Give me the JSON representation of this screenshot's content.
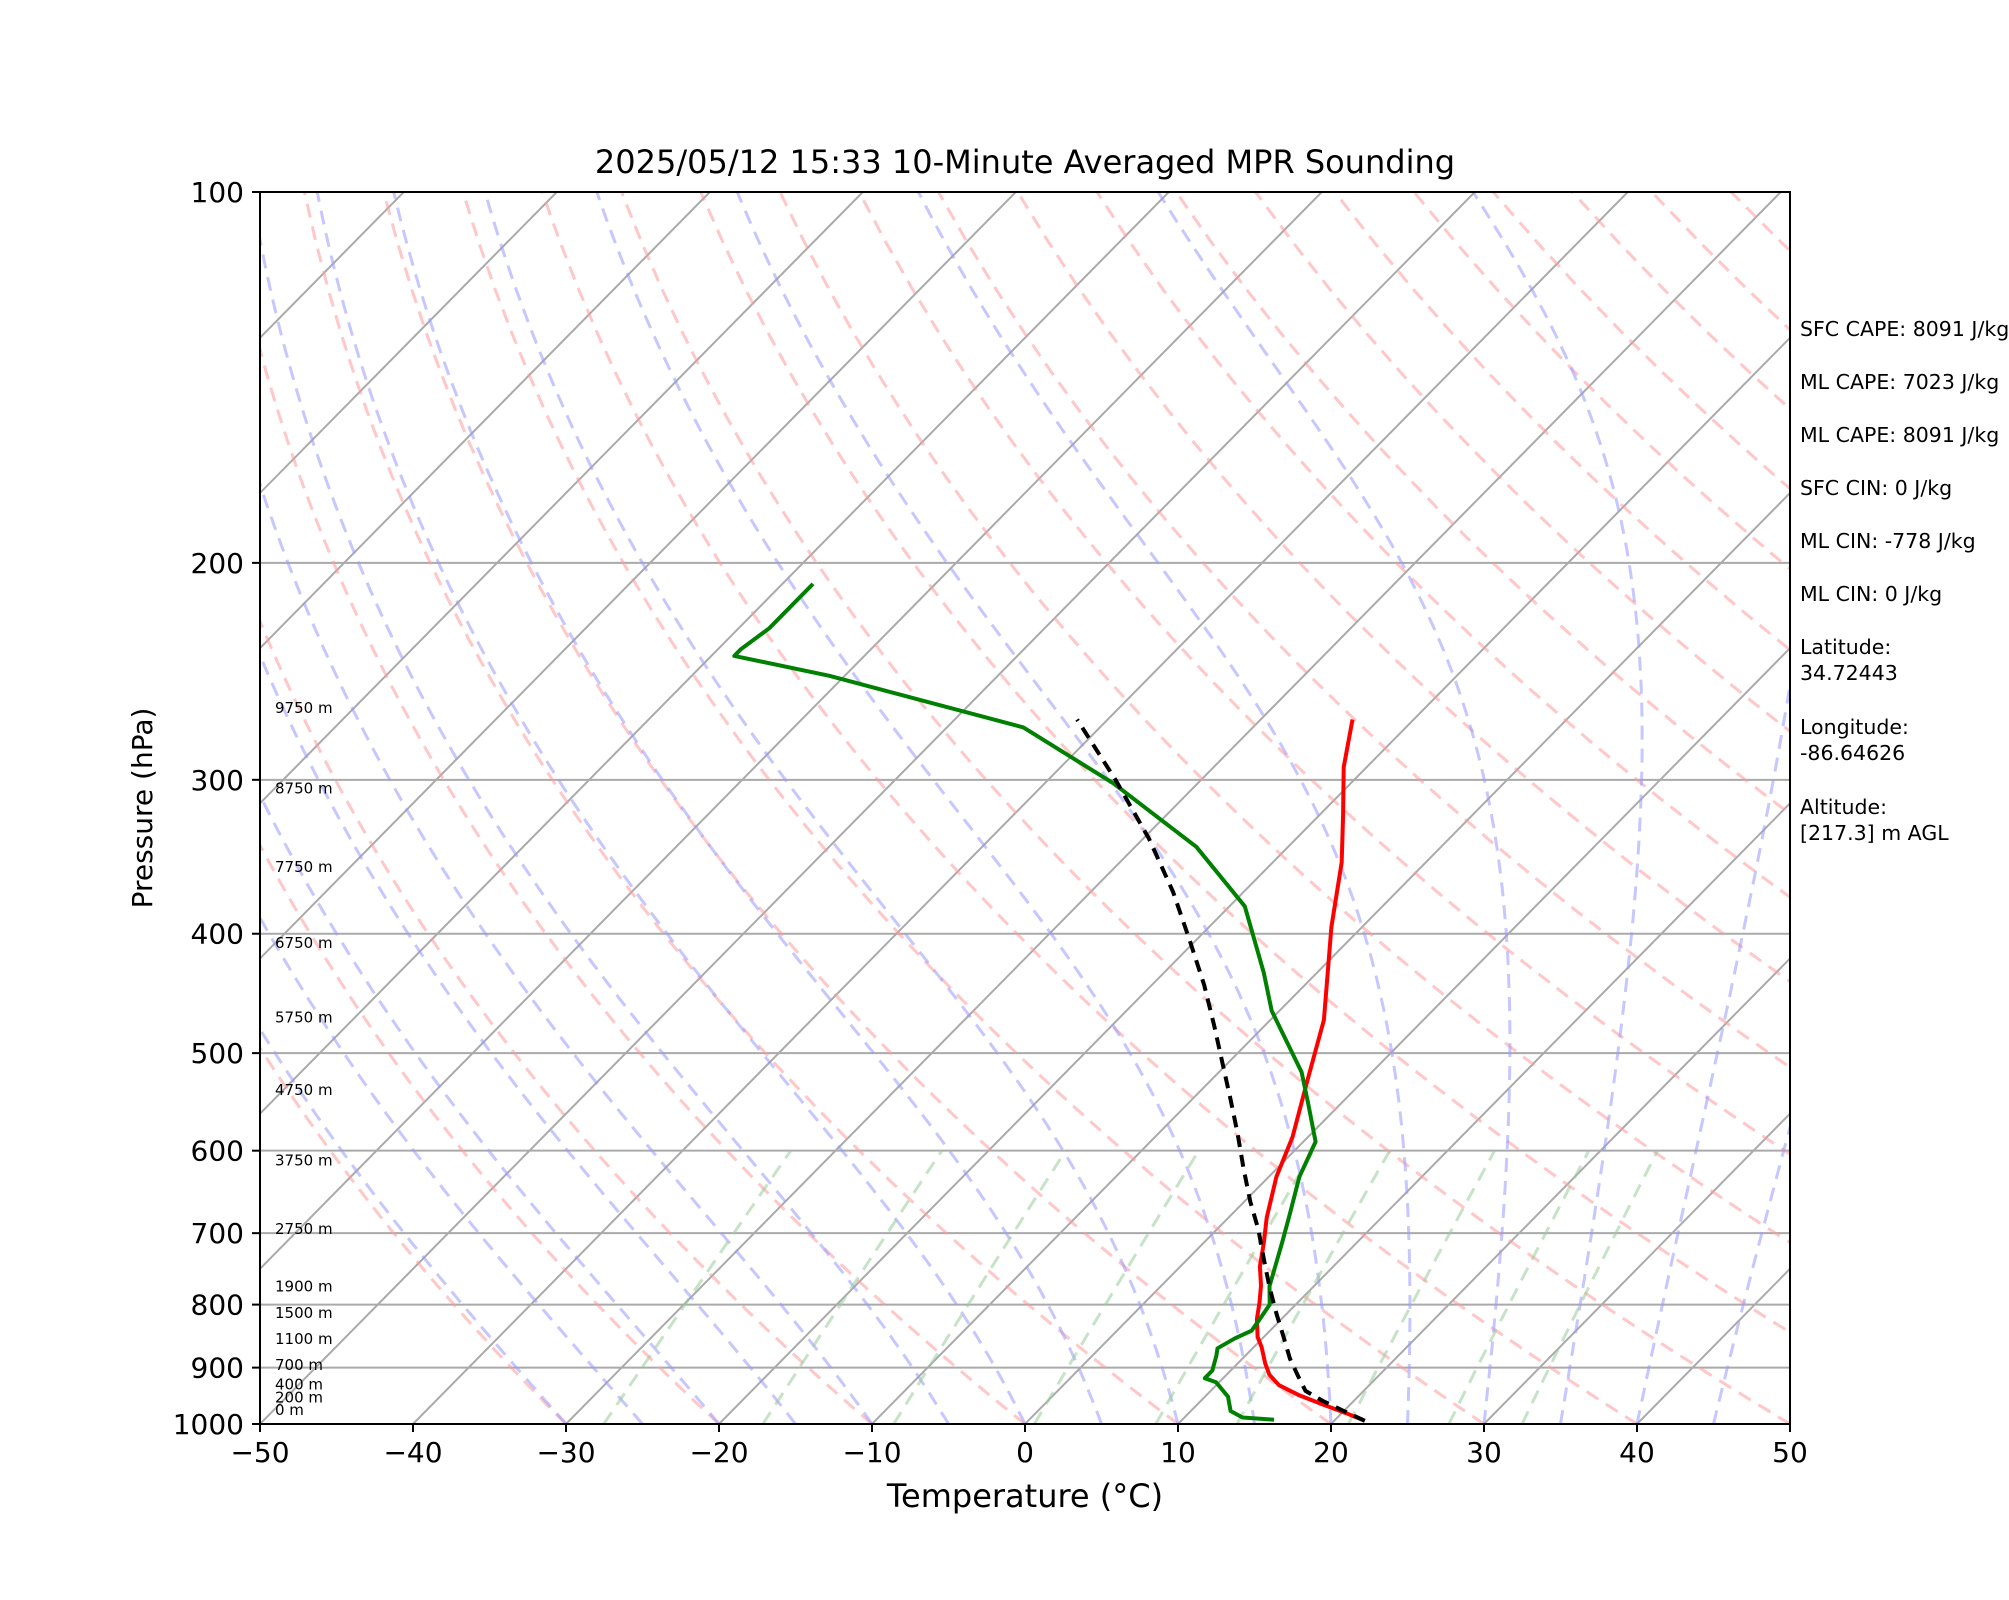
{
  "chart_data": {
    "type": "line",
    "subtype": "skew-t log-p sounding",
    "title": "2025/05/12 15:33 10-Minute Averaged MPR Sounding",
    "xlabel": "Temperature (°C)",
    "ylabel": "Pressure (hPa)",
    "xlim": [
      -50,
      50
    ],
    "ylim": [
      1000,
      100
    ],
    "y_scale": "log",
    "x_ticks": [
      "−50",
      "−40",
      "−30",
      "−20",
      "−10",
      "0",
      "10",
      "20",
      "30",
      "40",
      "50"
    ],
    "y_ticks": [
      "100",
      "200",
      "300",
      "400",
      "500",
      "600",
      "700",
      "800",
      "900",
      "1000"
    ],
    "height_labels": [
      "0 m",
      "200 m",
      "400 m",
      "700 m",
      "1100 m",
      "1500 m",
      "1900 m",
      "2750 m",
      "3750 m",
      "4750 m",
      "5750 m",
      "6750 m",
      "7750 m",
      "8750 m",
      "9750 m"
    ],
    "series": [
      {
        "role": "temperature",
        "color": "#ff0000",
        "points": [
          [
            22.0,
            994
          ],
          [
            20.3,
            980
          ],
          [
            18.3,
            965
          ],
          [
            16.1,
            948
          ],
          [
            14.1,
            930
          ],
          [
            12.8,
            912
          ],
          [
            11.8,
            893
          ],
          [
            10.5,
            866
          ],
          [
            9.6,
            850
          ],
          [
            8.4,
            822
          ],
          [
            7.5,
            797
          ],
          [
            6.5,
            772
          ],
          [
            5.2,
            745
          ],
          [
            3.9,
            712
          ],
          [
            2.5,
            680
          ],
          [
            0.5,
            630
          ],
          [
            -1.0,
            585
          ],
          [
            -3.5,
            530
          ],
          [
            -6.5,
            470
          ],
          [
            -12.0,
            395
          ],
          [
            -15.5,
            350
          ],
          [
            -18.5,
            320
          ],
          [
            -21.5,
            293
          ],
          [
            -24.0,
            268
          ]
        ]
      },
      {
        "role": "dewpoint",
        "color": "#008000",
        "points": [
          [
            16.0,
            992
          ],
          [
            13.8,
            988
          ],
          [
            12.6,
            976
          ],
          [
            11.5,
            950
          ],
          [
            9.8,
            925
          ],
          [
            8.8,
            918
          ],
          [
            8.8,
            905
          ],
          [
            8.1,
            880
          ],
          [
            7.7,
            868
          ],
          [
            8.2,
            852
          ],
          [
            8.8,
            840
          ],
          [
            8.6,
            823
          ],
          [
            8.3,
            800
          ],
          [
            7.1,
            773
          ],
          [
            6.2,
            745
          ],
          [
            5.1,
            712
          ],
          [
            3.8,
            676
          ],
          [
            2.0,
            630
          ],
          [
            0.8,
            590
          ],
          [
            -2.1,
            550
          ],
          [
            -4.6,
            518
          ],
          [
            -10.5,
            462
          ],
          [
            -13.5,
            430
          ],
          [
            -19.0,
            380
          ],
          [
            -26.0,
            340
          ],
          [
            -35.5,
            302
          ],
          [
            -45.0,
            272
          ],
          [
            -61.0,
            247
          ],
          [
            -68.5,
            238
          ],
          [
            -68.5,
            235
          ],
          [
            -68.0,
            226
          ],
          [
            -68.0,
            208
          ]
        ]
      },
      {
        "role": "parcel",
        "color": "#000000",
        "style": "dashed",
        "points": [
          [
            22.0,
            994
          ],
          [
            20.0,
            976
          ],
          [
            18.0,
            958
          ],
          [
            16.2,
            940
          ],
          [
            14.8,
            915
          ],
          [
            13.1,
            885
          ],
          [
            11.3,
            850
          ],
          [
            9.4,
            815
          ],
          [
            7.2,
            775
          ],
          [
            5.0,
            735
          ],
          [
            2.7,
            695
          ],
          [
            0.4,
            660
          ],
          [
            -2.2,
            620
          ],
          [
            -4.9,
            580
          ],
          [
            -7.5,
            545
          ],
          [
            -10.3,
            510
          ],
          [
            -13.3,
            475
          ],
          [
            -16.6,
            440
          ],
          [
            -20.4,
            405
          ],
          [
            -24.6,
            370
          ],
          [
            -29.6,
            335
          ],
          [
            -35.6,
            300
          ],
          [
            -42.0,
            268
          ]
        ]
      }
    ]
  },
  "stats": {
    "sfc_cape": "SFC CAPE: 8091 J/kg",
    "ml_cape_1": "ML CAPE: 7023 J/kg",
    "ml_cape_2": "ML CAPE: 8091 J/kg",
    "sfc_cin": "SFC CIN: 0 J/kg",
    "ml_cin_1": "ML CIN: -778 J/kg",
    "ml_cin_2": "ML CIN: 0 J/kg",
    "latitude_label": "Latitude:",
    "latitude_value": "34.72443",
    "longitude_label": "Longitude:",
    "longitude_value": "-86.64626",
    "altitude_label": "Altitude:",
    "altitude_value": "[217.3] m AGL"
  }
}
